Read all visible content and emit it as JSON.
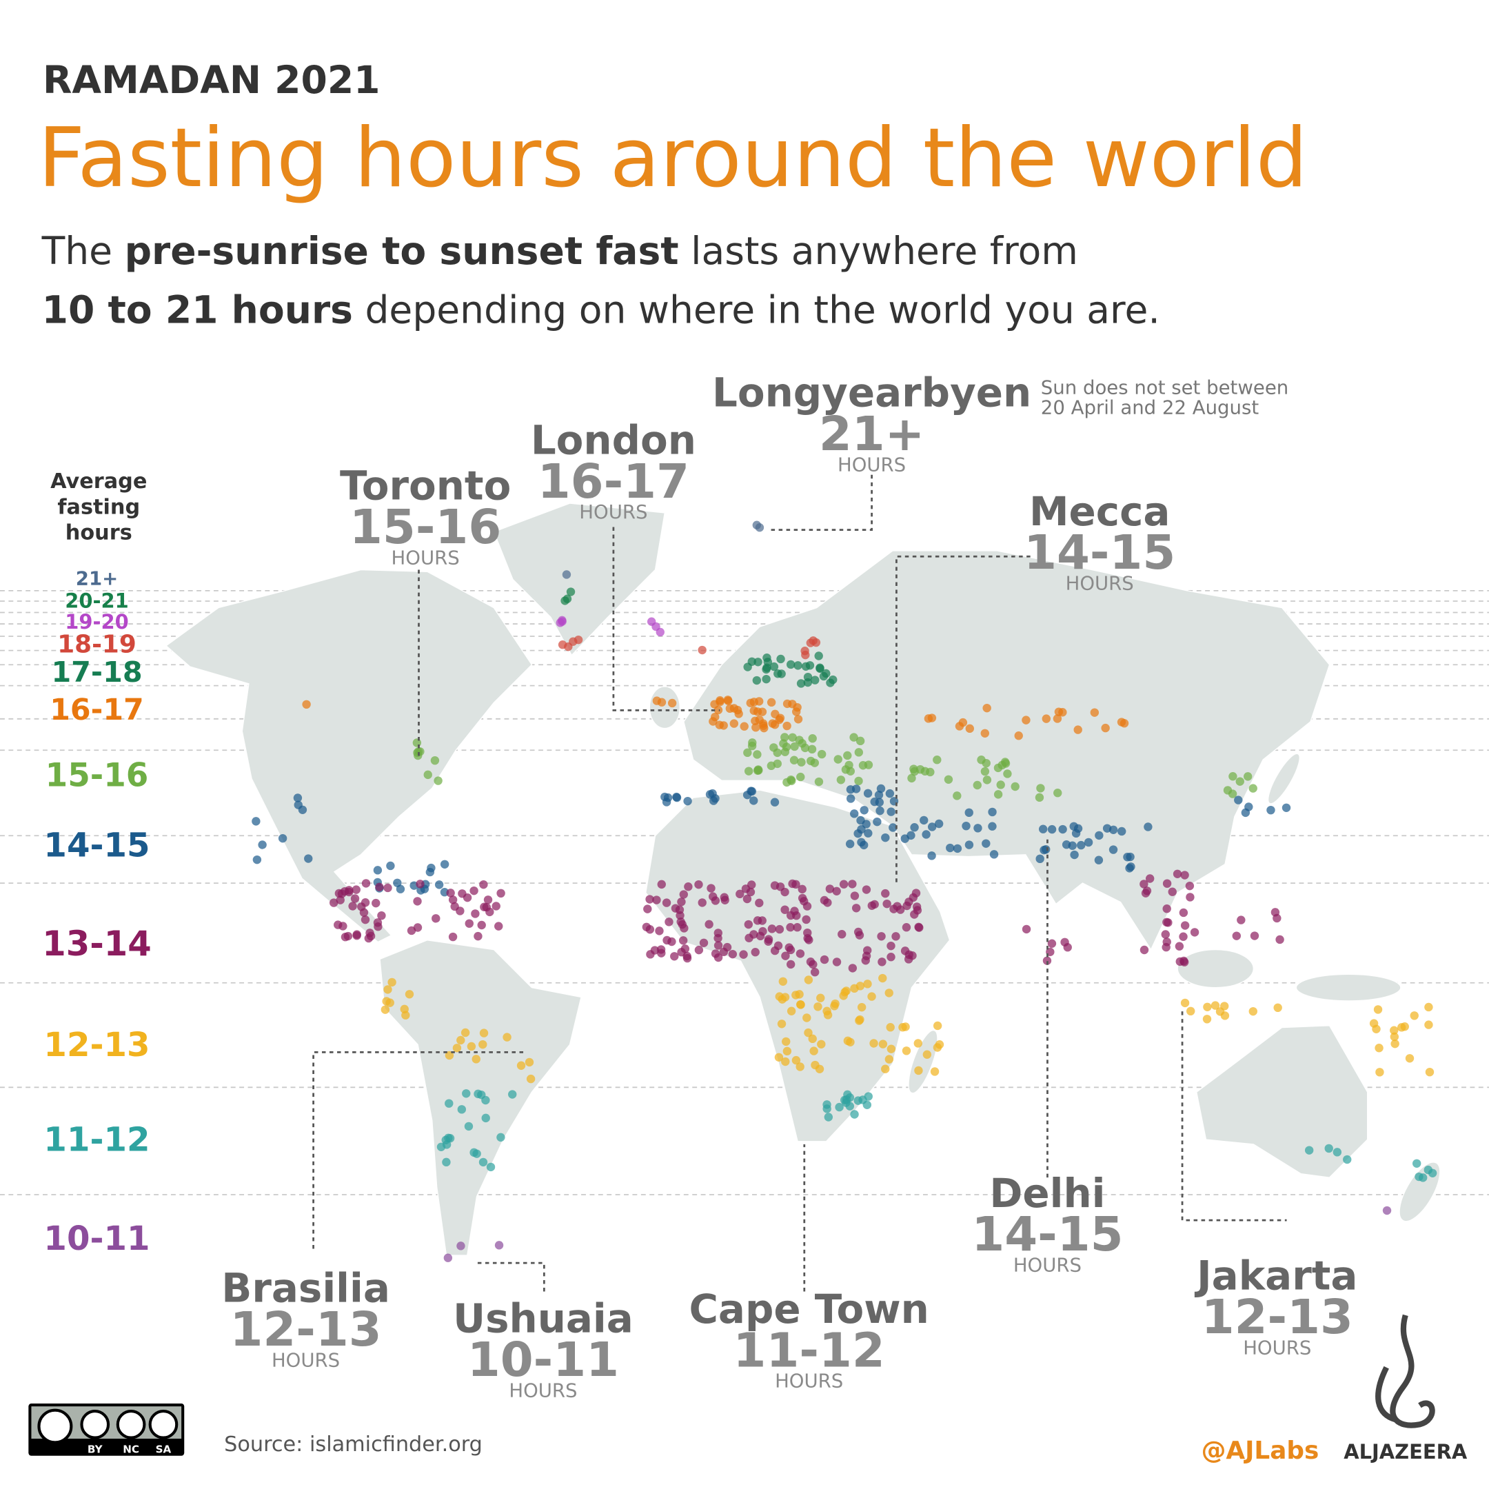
{
  "header": {
    "kicker": "RAMADAN 2021",
    "title": "Fasting hours around the world",
    "subtitle": [
      "The ",
      "pre-sunrise to sunset fast",
      " lasts anywhere from",
      "10 to 21 hours",
      " depending on where in the world you are."
    ]
  },
  "legend": {
    "title": "Average fasting hours",
    "items": [
      {
        "label": "21+",
        "color": "#4d6b8f"
      },
      {
        "label": "20-21",
        "color": "#17804a"
      },
      {
        "label": "19-20",
        "color": "#b447c8"
      },
      {
        "label": "18-19",
        "color": "#d2483b"
      },
      {
        "label": "17-18",
        "color": "#167d52"
      },
      {
        "label": "16-17",
        "color": "#e8770f"
      },
      {
        "label": "15-16",
        "color": "#6fae45"
      },
      {
        "label": "14-15",
        "color": "#1b5a8c"
      },
      {
        "label": "13-14",
        "color": "#8b1c5e"
      },
      {
        "label": "12-13",
        "color": "#f1b21e"
      },
      {
        "label": "11-12",
        "color": "#2fa3a0"
      },
      {
        "label": "10-11",
        "color": "#8c4d9c"
      }
    ]
  },
  "cities": [
    {
      "name": "Longyearbyen",
      "hours": "21+",
      "unit": "HOURS",
      "note": "Sun does not set between 20 April and 22 August"
    },
    {
      "name": "London",
      "hours": "16-17",
      "unit": "HOURS"
    },
    {
      "name": "Toronto",
      "hours": "15-16",
      "unit": "HOURS"
    },
    {
      "name": "Mecca",
      "hours": "14-15",
      "unit": "HOURS"
    },
    {
      "name": "Delhi",
      "hours": "14-15",
      "unit": "HOURS"
    },
    {
      "name": "Jakarta",
      "hours": "12-13",
      "unit": "HOURS"
    },
    {
      "name": "Brasilia",
      "hours": "12-13",
      "unit": "HOURS"
    },
    {
      "name": "Ushuaia",
      "hours": "10-11",
      "unit": "HOURS"
    },
    {
      "name": "Cape Town",
      "hours": "11-12",
      "unit": "HOURS"
    }
  ],
  "footer": {
    "license": [
      "BY",
      "NC",
      "SA"
    ],
    "source": "Source: islamicfinder.org",
    "handle": "@AJLabs",
    "brand": "ALJAZEERA"
  }
}
